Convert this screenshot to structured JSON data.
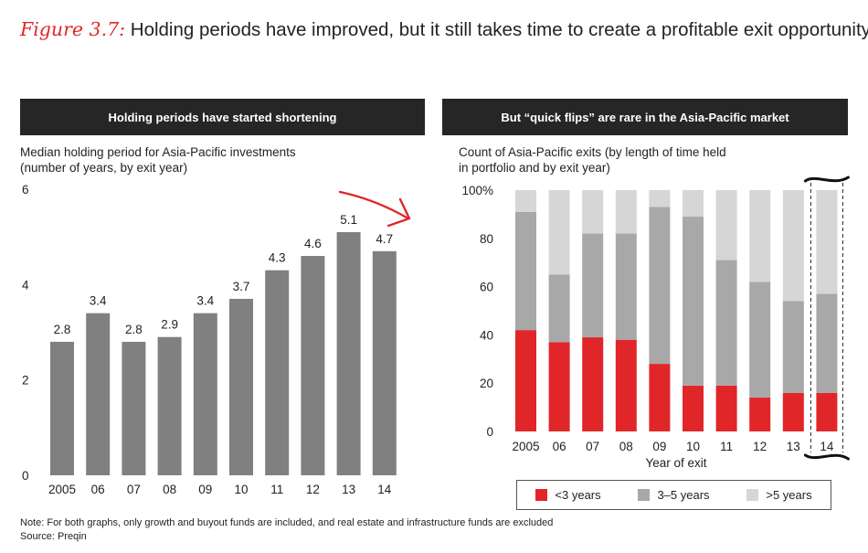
{
  "figure": {
    "label": "Figure 3.7:",
    "title": "Holding periods have improved, but it still takes time to create a profitable exit opportunity"
  },
  "colors": {
    "bar_gray": "#808080",
    "red": "#e1262a",
    "mid_gray": "#a8a8a8",
    "light_gray": "#d6d6d6",
    "header_bg": "#262626",
    "accent": "#e0262a"
  },
  "chart_data": [
    {
      "type": "bar",
      "header": "Holding periods have started shortening",
      "subtitle_line1": "Median holding period for Asia-Pacific investments",
      "subtitle_line2": "(number of years, by exit year)",
      "categories": [
        "2005",
        "06",
        "07",
        "08",
        "09",
        "10",
        "11",
        "12",
        "13",
        "14"
      ],
      "values": [
        2.8,
        3.4,
        2.8,
        2.9,
        3.4,
        3.7,
        4.3,
        4.6,
        5.1,
        4.7
      ],
      "data_labels": [
        "2.8",
        "3.4",
        "2.8",
        "2.9",
        "3.4",
        "3.7",
        "4.3",
        "4.6",
        "5.1",
        "4.7"
      ],
      "ylim": [
        0,
        6
      ],
      "yticks": [
        "0",
        "2",
        "4",
        "6"
      ],
      "grid": false,
      "annotation": "red-arrow-pointing-down-right"
    },
    {
      "type": "bar",
      "stacked": true,
      "header": "But “quick flips” are rare in the Asia-Pacific market",
      "subtitle_line1": "Count of Asia-Pacific exits (by length of time held",
      "subtitle_line2": "in portfolio and by exit year)",
      "categories": [
        "2005",
        "06",
        "07",
        "08",
        "09",
        "10",
        "11",
        "12",
        "13",
        "14"
      ],
      "xlabel": "Year of exit",
      "ylim": [
        0,
        100
      ],
      "yticks": [
        "0",
        "20",
        "40",
        "60",
        "80",
        "100%"
      ],
      "series": [
        {
          "name": "<3 years",
          "values": [
            42,
            37,
            39,
            38,
            28,
            19,
            19,
            14,
            16,
            16
          ]
        },
        {
          "name": "3–5 years",
          "values": [
            49,
            28,
            43,
            44,
            65,
            70,
            52,
            48,
            38,
            41
          ]
        },
        {
          "name": ">5 years",
          "values": [
            9,
            35,
            18,
            18,
            7,
            11,
            29,
            38,
            46,
            43
          ]
        }
      ],
      "grid": false,
      "legend_position": "bottom",
      "highlight": "14"
    }
  ],
  "notes": {
    "note": "Note: For both graphs, only growth and buyout funds are included, and real estate and infrastructure funds are excluded",
    "source": "Source: Preqin"
  }
}
